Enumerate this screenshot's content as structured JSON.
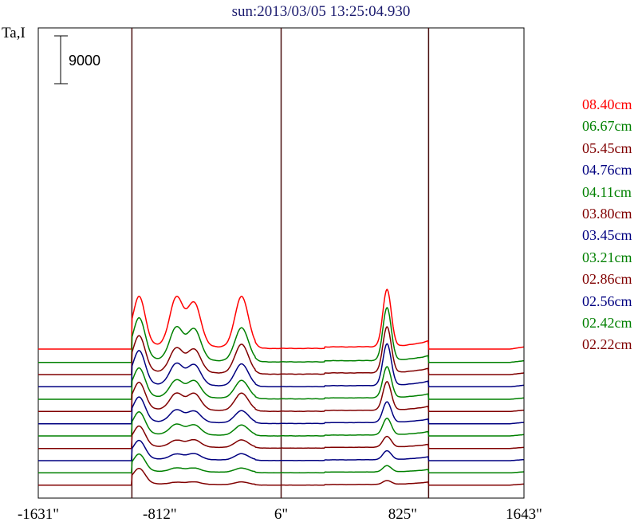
{
  "title": "sun:2013/03/05 13:25:04.930",
  "ylabel": "Ta,I",
  "scale_bar_label": "9000",
  "chart_data": {
    "type": "line",
    "title": "sun:2013/03/05 13:25:04.930",
    "ylabel": "Ta,I",
    "xlabel": "",
    "scale_bar": 9000,
    "x_ticks": [
      -1631,
      -812,
      6,
      825,
      1643
    ],
    "x_tick_labels": [
      "-1631\"",
      "-812\"",
      "6\"",
      "825\"",
      "1643\""
    ],
    "xlim": [
      -1631,
      1643
    ],
    "vertical_markers": [
      -1000,
      6,
      1000
    ],
    "grid": false,
    "legend_position": "right",
    "series": [
      {
        "name": "08.40cm",
        "color": "#ff0000",
        "offset": 26000,
        "sky": 400,
        "disk": 800,
        "limb": 1200,
        "peaks": [
          9500,
          10000,
          9000,
          10300,
          11500
        ]
      },
      {
        "name": "06.67cm",
        "color": "#008000",
        "offset": 23600,
        "sky": 300,
        "disk": 600,
        "limb": 1000,
        "peaks": [
          8000,
          6800,
          6500,
          6800,
          10500
        ]
      },
      {
        "name": "05.45cm",
        "color": "#800000",
        "offset": 21300,
        "sky": 300,
        "disk": 600,
        "limb": 900,
        "peaks": [
          7000,
          5200,
          5000,
          6000,
          9200
        ]
      },
      {
        "name": "04.76cm",
        "color": "#000080",
        "offset": 19000,
        "sky": 300,
        "disk": 500,
        "limb": 900,
        "peaks": [
          6500,
          4600,
          4400,
          4600,
          8300
        ]
      },
      {
        "name": "04.11cm",
        "color": "#008000",
        "offset": 16700,
        "sky": 250,
        "disk": 500,
        "limb": 800,
        "peaks": [
          5600,
          3800,
          3700,
          3800,
          6300
        ]
      },
      {
        "name": "03.80cm",
        "color": "#800000",
        "offset": 14400,
        "sky": 250,
        "disk": 450,
        "limb": 800,
        "peaks": [
          5200,
          3600,
          3600,
          3700,
          5800
        ]
      },
      {
        "name": "03.45cm",
        "color": "#000080",
        "offset": 12100,
        "sky": 250,
        "disk": 450,
        "limb": 700,
        "peaks": [
          4800,
          2800,
          2600,
          2700,
          4300
        ]
      },
      {
        "name": "03.21cm",
        "color": "#008000",
        "offset": 9800,
        "sky": 250,
        "disk": 400,
        "limb": 700,
        "peaks": [
          4300,
          2400,
          2300,
          2300,
          3500
        ]
      },
      {
        "name": "02.86cm",
        "color": "#800000",
        "offset": 7500,
        "sky": 200,
        "disk": 400,
        "limb": 600,
        "peaks": [
          4000,
          1700,
          1800,
          1800,
          2400
        ]
      },
      {
        "name": "02.56cm",
        "color": "#000080",
        "offset": 5200,
        "sky": 200,
        "disk": 350,
        "limb": 600,
        "peaks": [
          3600,
          1400,
          1500,
          1500,
          2000
        ]
      },
      {
        "name": "02.42cm",
        "color": "#008000",
        "offset": 2900,
        "sky": 200,
        "disk": 350,
        "limb": 500,
        "peaks": [
          3400,
          1100,
          1100,
          1100,
          1500
        ]
      },
      {
        "name": "02.22cm",
        "color": "#800000",
        "offset": 600,
        "sky": 200,
        "disk": 300,
        "limb": 500,
        "peaks": [
          3000,
          700,
          800,
          800,
          1000
        ]
      }
    ]
  }
}
